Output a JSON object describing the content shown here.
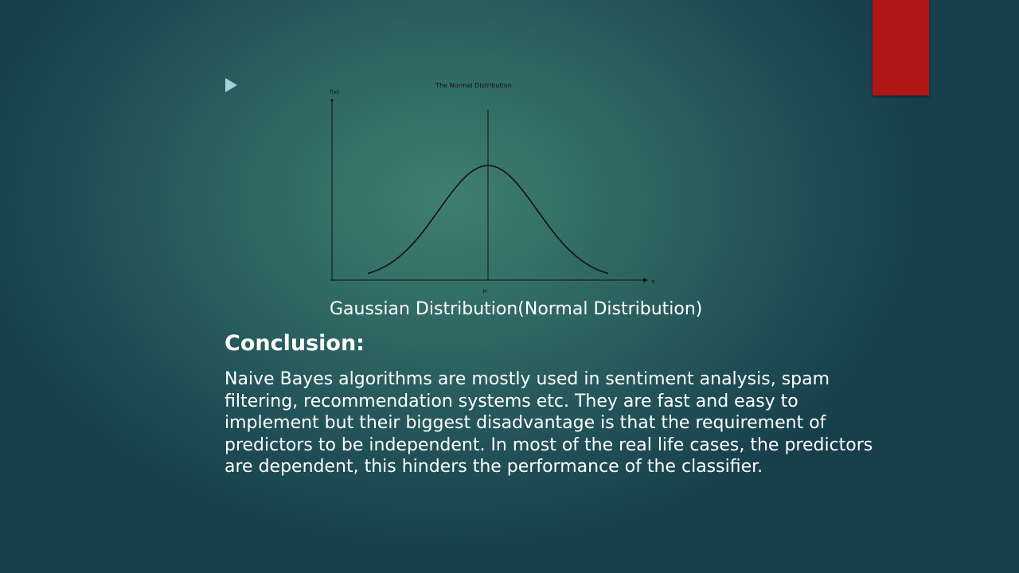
{
  "slide": {
    "accent_color": "#b01614",
    "bullet_color": "#9fd3dc",
    "bullet_icon": "triangle-right-icon",
    "caption": "Gaussian Distribution(Normal Distribution)",
    "heading": "Conclusion:",
    "body_lines": [
      "Naive Bayes algorithms are mostly used in sentiment analysis, spam",
      "filtering, recommendation  systems etc. They are fast and easy to",
      "implement but their biggest disadvantage is that the requirement of",
      "predictors to be independent.  In most of the real life cases, the predictors",
      "are dependent,  this hinders the performance of the classifier."
    ]
  },
  "chart_data": {
    "type": "line",
    "title": "The Normal Distribution",
    "ylabel": "f(x)",
    "xlabel": "x",
    "x_ticks": [
      "μ"
    ],
    "curve": "normal-bell",
    "mean_line": true,
    "grid": false
  }
}
